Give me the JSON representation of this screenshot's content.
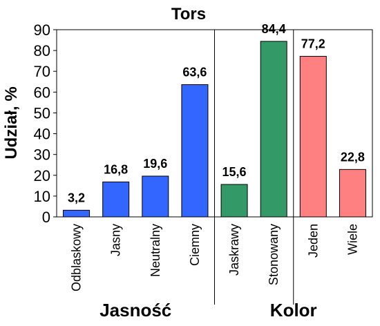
{
  "chart_data": {
    "type": "bar",
    "title": "Tors",
    "ylabel": "Udział, %",
    "xlabel": "",
    "ylim": [
      0,
      90
    ],
    "yticks": [
      0,
      10,
      20,
      30,
      40,
      50,
      60,
      70,
      80,
      90
    ],
    "grid": false,
    "categories": [
      "Odblaskowy",
      "Jasny",
      "Neutralny",
      "Ciemny",
      "Jaskrawy",
      "Stonowany",
      "Jeden",
      "Wiele"
    ],
    "values": [
      3.2,
      16.8,
      19.6,
      63.6,
      15.6,
      84.4,
      77.2,
      22.8
    ],
    "value_labels": [
      "3,2",
      "16,8",
      "19,6",
      "63,6",
      "15,6",
      "84,4",
      "77,2",
      "22,8"
    ],
    "bar_colors": [
      "#3366ff",
      "#3366ff",
      "#3366ff",
      "#3366ff",
      "#339966",
      "#339966",
      "#ff8080",
      "#ff8080"
    ],
    "groups": [
      {
        "label": "Jasność",
        "start": 0,
        "end": 3
      },
      {
        "label": "Kolor",
        "start": 4,
        "end": 7
      }
    ],
    "separators_after": [
      3,
      5
    ]
  }
}
